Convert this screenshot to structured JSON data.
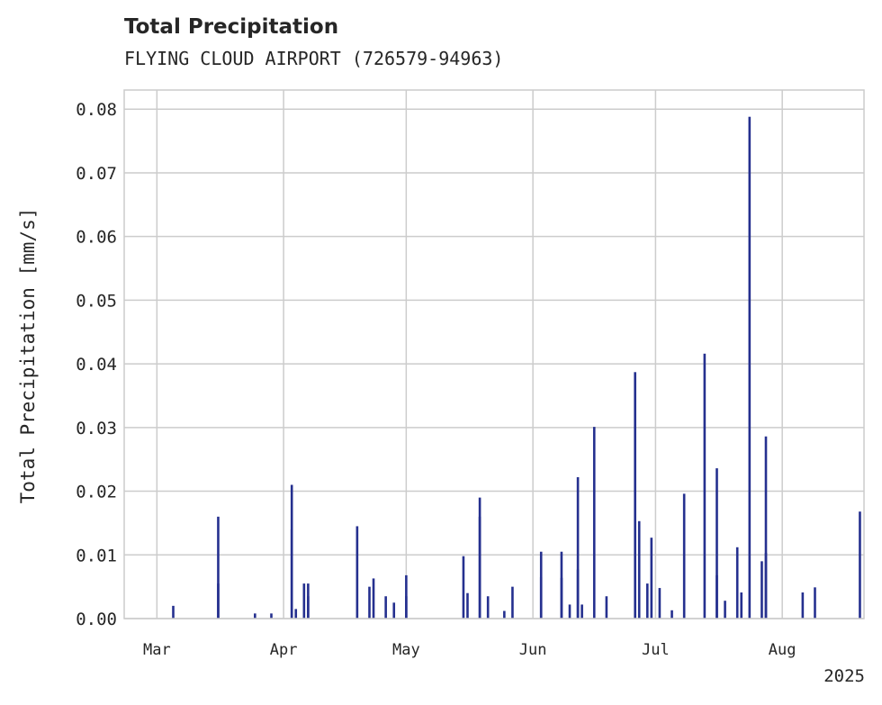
{
  "chart_data": {
    "type": "bar",
    "title": "Total Precipitation",
    "subtitle": "FLYING CLOUD AIRPORT (726579-94963)",
    "ylabel": "Total Precipitation [mm/s]",
    "xlabel": "",
    "ylim": [
      0,
      0.083
    ],
    "yticks": [
      "0.00",
      "0.01",
      "0.02",
      "0.03",
      "0.04",
      "0.05",
      "0.06",
      "0.07",
      "0.08"
    ],
    "ytick_values": [
      0,
      0.01,
      0.02,
      0.03,
      0.04,
      0.05,
      0.06,
      0.07,
      0.08
    ],
    "x_start": "2025-02-21",
    "x_end": "2025-08-21",
    "xticks": [
      {
        "label": "Mar",
        "date": "2025-03-01"
      },
      {
        "label": "Apr",
        "date": "2025-04-01"
      },
      {
        "label": "May",
        "date": "2025-05-01"
      },
      {
        "label": "Jun",
        "date": "2025-06-01"
      },
      {
        "label": "Jul",
        "date": "2025-07-01"
      },
      {
        "label": "Aug",
        "date": "2025-08-01"
      }
    ],
    "year_label": "2025",
    "grid": true,
    "bar_color": "#25308f",
    "series": [
      {
        "name": "Total Precipitation",
        "x": [
          "2025-03-05",
          "2025-03-16",
          "2025-03-16",
          "2025-03-25",
          "2025-03-29",
          "2025-04-03",
          "2025-04-03",
          "2025-04-04",
          "2025-04-06",
          "2025-04-07",
          "2025-04-07",
          "2025-04-19",
          "2025-04-22",
          "2025-04-23",
          "2025-04-26",
          "2025-04-28",
          "2025-05-01",
          "2025-05-01",
          "2025-05-15",
          "2025-05-16",
          "2025-05-19",
          "2025-05-19",
          "2025-05-21",
          "2025-05-25",
          "2025-05-27",
          "2025-06-03",
          "2025-06-03",
          "2025-06-08",
          "2025-06-08",
          "2025-06-10",
          "2025-06-12",
          "2025-06-12",
          "2025-06-13",
          "2025-06-16",
          "2025-06-19",
          "2025-06-26",
          "2025-06-27",
          "2025-06-29",
          "2025-06-30",
          "2025-07-02",
          "2025-07-05",
          "2025-07-08",
          "2025-07-13",
          "2025-07-16",
          "2025-07-16",
          "2025-07-18",
          "2025-07-21",
          "2025-07-22",
          "2025-07-24",
          "2025-07-27",
          "2025-07-28",
          "2025-07-28",
          "2025-08-06",
          "2025-08-09",
          "2025-08-20"
        ],
        "values": [
          0.002,
          0.016,
          0.0055,
          0.0008,
          0.0008,
          0.021,
          0.014,
          0.0015,
          0.0055,
          0.0055,
          0.0035,
          0.0145,
          0.005,
          0.0063,
          0.0035,
          0.0025,
          0.0068,
          0.0035,
          0.0098,
          0.004,
          0.019,
          0.016,
          0.0035,
          0.0012,
          0.005,
          0.0105,
          0.0065,
          0.0105,
          0.0064,
          0.0022,
          0.0222,
          0.0077,
          0.0022,
          0.0301,
          0.0035,
          0.0387,
          0.0153,
          0.0055,
          0.0127,
          0.0048,
          0.0013,
          0.0196,
          0.0416,
          0.0236,
          0.0068,
          0.0028,
          0.0112,
          0.0041,
          0.0788,
          0.009,
          0.0286,
          0.0103,
          0.0041,
          0.0049,
          0.0168
        ]
      }
    ]
  }
}
